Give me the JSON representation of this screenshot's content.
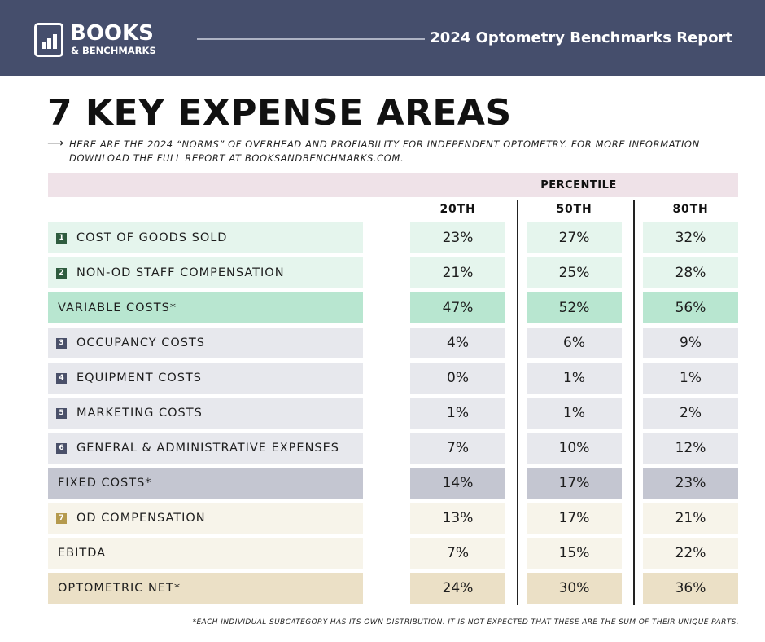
{
  "header": {
    "logo_line1": "BOOKS",
    "logo_line2": "& BENCHMARKS",
    "report_title": "2024 Optometry Benchmarks Report"
  },
  "title": "7 KEY EXPENSE AREAS",
  "subtitle": "HERE ARE THE 2024 “NORMS” OF OVERHEAD AND PROFIABILITY FOR INDEPENDENT OPTOMETRY. FOR MORE INFORMATION DOWNLOAD THE FULL REPORT AT BOOKSANDBENCHMARKS.COM.",
  "arrow_glyph": "⟶",
  "table": {
    "group_header": "PERCENTILE",
    "columns": [
      "20TH",
      "50TH",
      "80TH"
    ],
    "rows": [
      {
        "num": "1",
        "label": "COST OF GOODS SOLD",
        "values": [
          "23%",
          "27%",
          "32%"
        ],
        "style": "mint",
        "badge_color": "#2f5c3f"
      },
      {
        "num": "2",
        "label": "NON-OD STAFF COMPENSATION",
        "values": [
          "21%",
          "25%",
          "28%"
        ],
        "style": "mint",
        "badge_color": "#2f5c3f"
      },
      {
        "num": "",
        "label": "VARIABLE COSTS*",
        "values": [
          "47%",
          "52%",
          "56%"
        ],
        "style": "mint-dark",
        "badge_color": ""
      },
      {
        "num": "3",
        "label": "OCCUPANCY COSTS",
        "values": [
          "4%",
          "6%",
          "9%"
        ],
        "style": "gray",
        "badge_color": "#4a5069"
      },
      {
        "num": "4",
        "label": "EQUIPMENT COSTS",
        "values": [
          "0%",
          "1%",
          "1%"
        ],
        "style": "gray",
        "badge_color": "#4a5069"
      },
      {
        "num": "5",
        "label": "MARKETING COSTS",
        "values": [
          "1%",
          "1%",
          "2%"
        ],
        "style": "gray",
        "badge_color": "#4a5069"
      },
      {
        "num": "6",
        "label": "GENERAL & ADMINISTRATIVE EXPENSES",
        "values": [
          "7%",
          "10%",
          "12%"
        ],
        "style": "gray",
        "badge_color": "#4a5069"
      },
      {
        "num": "",
        "label": "FIXED COSTS*",
        "values": [
          "14%",
          "17%",
          "23%"
        ],
        "style": "gray-dark",
        "badge_color": ""
      },
      {
        "num": "7",
        "label": "OD COMPENSATION",
        "values": [
          "13%",
          "17%",
          "21%"
        ],
        "style": "cream",
        "badge_color": "#b59a4e"
      },
      {
        "num": "",
        "label": "EBITDA",
        "values": [
          "7%",
          "15%",
          "22%"
        ],
        "style": "cream",
        "badge_color": ""
      },
      {
        "num": "",
        "label": "OPTOMETRIC NET*",
        "values": [
          "24%",
          "30%",
          "36%"
        ],
        "style": "tan",
        "badge_color": ""
      }
    ]
  },
  "colors": {
    "header_bg": "#454e6c",
    "percentile_band": "#efe2e8",
    "mint": "#e5f5ed",
    "mint-dark": "#b8e6d0",
    "gray": "#e7e8ed",
    "gray-dark": "#c4c6d1",
    "cream": "#f7f4ea",
    "tan": "#ebe0c6"
  },
  "footnote": "*EACH INDIVIDUAL SUBCATEGORY HAS ITS OWN DISTRIBUTION.  IT IS NOT EXPECTED THAT THESE ARE THE SUM OF THEIR UNIQUE PARTS."
}
